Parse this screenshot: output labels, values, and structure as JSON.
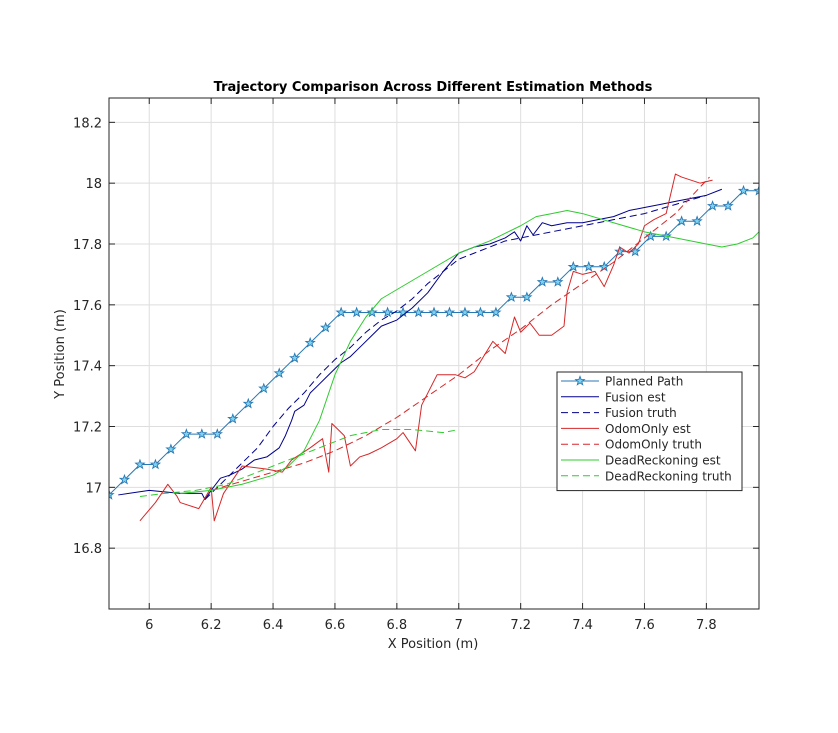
{
  "chart_data": {
    "type": "line",
    "title": "Trajectory Comparison Across Different Estimation Methods",
    "xlabel": "X Position (m)",
    "ylabel": "Y Position (m)",
    "xlim": [
      5.87,
      7.97
    ],
    "ylim": [
      16.6,
      18.28
    ],
    "xticks": [
      6,
      6.2,
      6.4,
      6.6,
      6.8,
      7,
      7.2,
      7.4,
      7.6,
      7.8
    ],
    "xtick_labels": [
      "6",
      "6.2",
      "6.4",
      "6.6",
      "6.8",
      "7",
      "7.2",
      "7.4",
      "7.6",
      "7.8"
    ],
    "yticks": [
      16.8,
      17,
      17.2,
      17.4,
      17.6,
      17.8,
      18,
      18.2
    ],
    "ytick_labels": [
      "16.8",
      "17",
      "17.2",
      "17.4",
      "17.6",
      "17.8",
      "18",
      "18.2"
    ],
    "grid": true,
    "legend_position": "right-middle",
    "series": [
      {
        "name": "Planned Path",
        "color": "#2878b4",
        "style": "solid",
        "marker": "star",
        "x": [
          5.87,
          5.92,
          5.97,
          6.02,
          6.07,
          6.12,
          6.17,
          6.22,
          6.27,
          6.32,
          6.37,
          6.42,
          6.47,
          6.52,
          6.57,
          6.62,
          6.67,
          6.72,
          6.77,
          6.82,
          6.87,
          6.92,
          6.97,
          7.02,
          7.07,
          7.12,
          7.17,
          7.22,
          7.27,
          7.32,
          7.37,
          7.42,
          7.47,
          7.52,
          7.57,
          7.62,
          7.67,
          7.72,
          7.77,
          7.82,
          7.87,
          7.92,
          7.97
        ],
        "y": [
          16.975,
          17.025,
          17.075,
          17.075,
          17.125,
          17.175,
          17.175,
          17.175,
          17.225,
          17.275,
          17.325,
          17.375,
          17.425,
          17.475,
          17.525,
          17.575,
          17.575,
          17.575,
          17.575,
          17.575,
          17.575,
          17.575,
          17.575,
          17.575,
          17.575,
          17.575,
          17.625,
          17.625,
          17.675,
          17.675,
          17.725,
          17.725,
          17.725,
          17.775,
          17.775,
          17.825,
          17.825,
          17.875,
          17.875,
          17.925,
          17.925,
          17.975,
          17.975
        ]
      },
      {
        "name": "Fusion est",
        "color": "#00008b",
        "style": "solid",
        "x": [
          5.9,
          6.0,
          6.1,
          6.17,
          6.18,
          6.2,
          6.23,
          6.26,
          6.3,
          6.34,
          6.38,
          6.42,
          6.44,
          6.46,
          6.47,
          6.5,
          6.52,
          6.55,
          6.58,
          6.62,
          6.65,
          6.68,
          6.72,
          6.75,
          6.8,
          6.85,
          6.9,
          6.95,
          7.0,
          7.05,
          7.1,
          7.15,
          7.18,
          7.2,
          7.22,
          7.24,
          7.27,
          7.3,
          7.35,
          7.4,
          7.45,
          7.5,
          7.55,
          7.6,
          7.65,
          7.7,
          7.75,
          7.8,
          7.85
        ],
        "y": [
          16.975,
          16.99,
          16.98,
          16.98,
          16.96,
          16.99,
          17.03,
          17.04,
          17.06,
          17.09,
          17.1,
          17.13,
          17.17,
          17.22,
          17.25,
          17.27,
          17.31,
          17.34,
          17.37,
          17.41,
          17.43,
          17.46,
          17.5,
          17.53,
          17.55,
          17.59,
          17.64,
          17.71,
          17.77,
          17.79,
          17.8,
          17.82,
          17.84,
          17.81,
          17.86,
          17.83,
          17.87,
          17.86,
          17.87,
          17.87,
          17.88,
          17.89,
          17.91,
          17.92,
          17.93,
          17.94,
          17.95,
          17.96,
          17.98
        ]
      },
      {
        "name": "Fusion truth",
        "color": "#00008b",
        "style": "dashed",
        "x": [
          6.18,
          6.25,
          6.3,
          6.35,
          6.4,
          6.45,
          6.5,
          6.55,
          6.6,
          6.65,
          6.7,
          6.75,
          6.8,
          6.85,
          6.9,
          6.95,
          7.0,
          7.05,
          7.1,
          7.15,
          7.2,
          7.3,
          7.4,
          7.5,
          7.6,
          7.7,
          7.8
        ],
        "y": [
          16.96,
          17.03,
          17.08,
          17.13,
          17.2,
          17.26,
          17.31,
          17.37,
          17.42,
          17.46,
          17.51,
          17.55,
          17.58,
          17.62,
          17.67,
          17.71,
          17.75,
          17.77,
          17.79,
          17.81,
          17.82,
          17.84,
          17.86,
          17.88,
          17.9,
          17.93,
          17.96
        ]
      },
      {
        "name": "OdomOnly est",
        "color": "#d62728",
        "style": "solid",
        "x": [
          5.97,
          6.02,
          6.06,
          6.09,
          6.1,
          6.16,
          6.2,
          6.21,
          6.24,
          6.3,
          6.38,
          6.43,
          6.46,
          6.52,
          6.56,
          6.58,
          6.59,
          6.61,
          6.63,
          6.65,
          6.68,
          6.71,
          6.75,
          6.8,
          6.82,
          6.86,
          6.88,
          6.93,
          6.99,
          7.02,
          7.05,
          7.11,
          7.15,
          7.18,
          7.2,
          7.23,
          7.26,
          7.3,
          7.34,
          7.35,
          7.37,
          7.4,
          7.44,
          7.47,
          7.5,
          7.52,
          7.55,
          7.58,
          7.6,
          7.63,
          7.67,
          7.7,
          7.72,
          7.78,
          7.82
        ],
        "y": [
          16.89,
          16.95,
          17.01,
          16.97,
          16.95,
          16.93,
          17.0,
          16.89,
          16.98,
          17.07,
          17.06,
          17.05,
          17.09,
          17.13,
          17.16,
          17.05,
          17.21,
          17.19,
          17.17,
          17.07,
          17.1,
          17.11,
          17.13,
          17.16,
          17.18,
          17.12,
          17.27,
          17.37,
          17.37,
          17.36,
          17.38,
          17.48,
          17.44,
          17.56,
          17.51,
          17.54,
          17.5,
          17.5,
          17.53,
          17.64,
          17.71,
          17.7,
          17.71,
          17.66,
          17.73,
          17.79,
          17.77,
          17.8,
          17.86,
          17.88,
          17.9,
          18.03,
          18.02,
          18.0,
          18.01
        ]
      },
      {
        "name": "OdomOnly truth",
        "color": "#d62728",
        "style": "dashed",
        "x": [
          6.2,
          6.3,
          6.4,
          6.5,
          6.6,
          6.7,
          6.8,
          6.9,
          7.0,
          7.1,
          7.2,
          7.3,
          7.4,
          7.5,
          7.6,
          7.7,
          7.81
        ],
        "y": [
          16.99,
          17.02,
          17.05,
          17.08,
          17.12,
          17.17,
          17.23,
          17.3,
          17.37,
          17.45,
          17.52,
          17.6,
          17.67,
          17.74,
          17.82,
          17.9,
          18.02
        ]
      },
      {
        "name": "DeadReckoning est",
        "color": "#2ecc2e",
        "style": "solid",
        "x": [
          6.1,
          6.2,
          6.3,
          6.4,
          6.45,
          6.5,
          6.55,
          6.6,
          6.65,
          6.7,
          6.75,
          6.8,
          6.9,
          7.0,
          7.1,
          7.2,
          7.25,
          7.3,
          7.35,
          7.4,
          7.5,
          7.6,
          7.7,
          7.8,
          7.85,
          7.9,
          7.95,
          7.97
        ],
        "y": [
          16.98,
          16.99,
          17.01,
          17.04,
          17.07,
          17.12,
          17.22,
          17.37,
          17.48,
          17.56,
          17.62,
          17.65,
          17.71,
          17.77,
          17.81,
          17.86,
          17.89,
          17.9,
          17.91,
          17.9,
          17.87,
          17.84,
          17.82,
          17.8,
          17.79,
          17.8,
          17.82,
          17.84
        ]
      },
      {
        "name": "DeadReckoning truth",
        "color": "#2ecc2e",
        "style": "dashed",
        "x": [
          5.97,
          6.05,
          6.15,
          6.25,
          6.35,
          6.45,
          6.55,
          6.65,
          6.75,
          6.85,
          6.95,
          7.0
        ],
        "y": [
          16.97,
          16.98,
          16.99,
          17.01,
          17.05,
          17.09,
          17.13,
          17.17,
          17.19,
          17.19,
          17.18,
          17.19
        ]
      }
    ]
  }
}
